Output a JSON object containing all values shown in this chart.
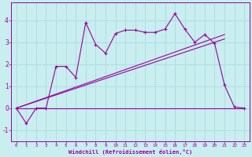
{
  "xlabel": "Windchill (Refroidissement éolien,°C)",
  "bg_color": "#c8eef0",
  "line_color": "#990099",
  "grid_color": "#b0dde0",
  "x_data": [
    0,
    1,
    2,
    3,
    4,
    5,
    6,
    7,
    8,
    9,
    10,
    11,
    12,
    13,
    14,
    15,
    16,
    17,
    18,
    19,
    20,
    21,
    22,
    23
  ],
  "y_main": [
    0.0,
    -0.7,
    0.0,
    0.0,
    1.9,
    1.9,
    1.4,
    3.9,
    2.9,
    2.5,
    3.4,
    3.55,
    3.55,
    3.45,
    3.45,
    3.6,
    4.3,
    3.6,
    3.0,
    3.35,
    2.95,
    1.05,
    0.05,
    0.0
  ],
  "y_flat": [
    0.0,
    0.0,
    0.0,
    0.0,
    0.0,
    0.0,
    0.0,
    0.0,
    0.0,
    0.0,
    0.0,
    0.0,
    0.0,
    0.0,
    0.0,
    0.0,
    0.0,
    0.0,
    0.0,
    0.0,
    0.0,
    0.0,
    0.0,
    0.0
  ],
  "trend1_x": [
    0,
    21
  ],
  "trend1_y": [
    0.0,
    3.15
  ],
  "trend2_x": [
    0,
    21
  ],
  "trend2_y": [
    0.0,
    3.35
  ],
  "ylim": [
    -1.5,
    4.8
  ],
  "xlim": [
    -0.5,
    23.5
  ],
  "yticks": [
    -1,
    0,
    1,
    2,
    3,
    4
  ],
  "xticks": [
    0,
    1,
    2,
    3,
    4,
    5,
    6,
    7,
    8,
    9,
    10,
    11,
    12,
    13,
    14,
    15,
    16,
    17,
    18,
    19,
    20,
    21,
    22,
    23
  ],
  "marker": "+"
}
